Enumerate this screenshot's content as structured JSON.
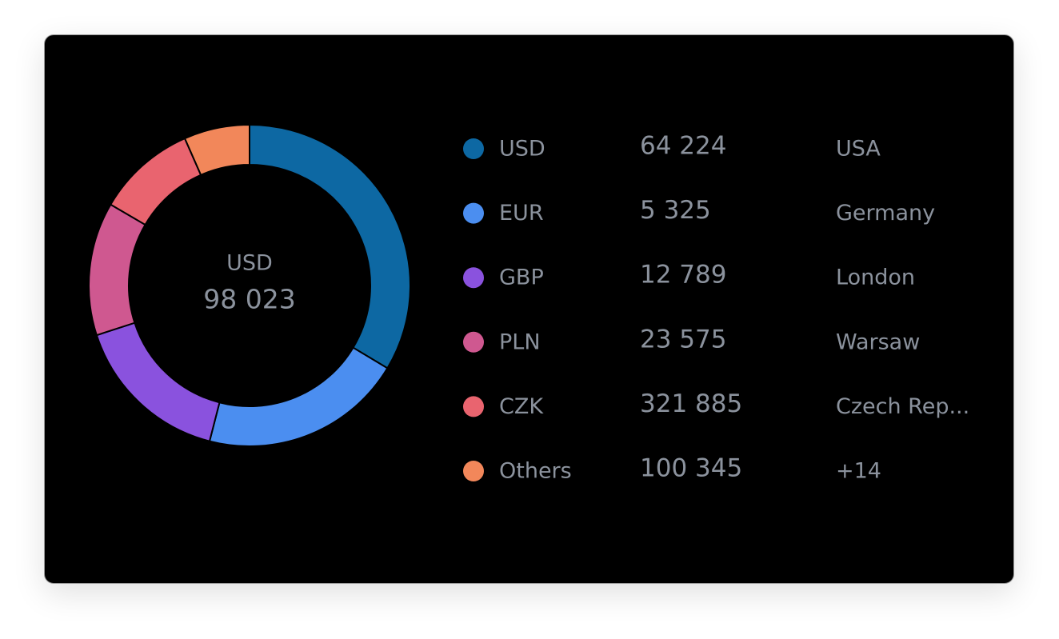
{
  "chart_data": {
    "type": "donut",
    "center_label": "USD",
    "center_value": "98 023",
    "categories": [
      "USD",
      "EUR",
      "GBP",
      "PLN",
      "CZK",
      "Others"
    ],
    "values": [
      33.6,
      20.4,
      16,
      13.4,
      10,
      6.6
    ],
    "colors": [
      "#0d68a3",
      "#4b8ef0",
      "#8a52de",
      "#cf5890",
      "#e9646f",
      "#f2875a"
    ]
  },
  "legend": {
    "rows": [
      {
        "amount": "64 224",
        "location": "USA"
      },
      {
        "amount": "5 325",
        "location": "Germany"
      },
      {
        "amount": "12 789",
        "location": "London"
      },
      {
        "amount": "23 575",
        "location": "Warsaw"
      },
      {
        "amount": "321 885",
        "location": "Czech Rep..."
      },
      {
        "amount": "100 345",
        "location": "+14"
      }
    ]
  }
}
